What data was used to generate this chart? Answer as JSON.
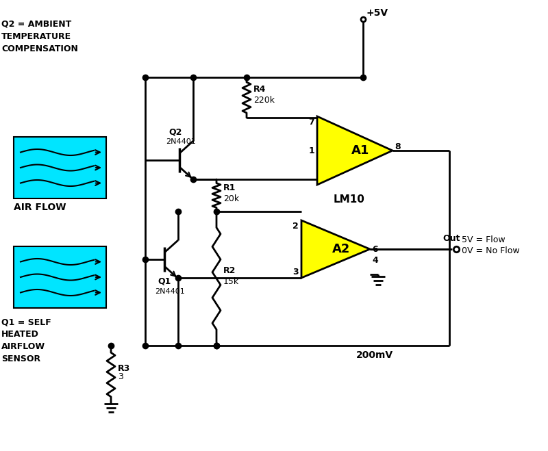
{
  "bg_color": "#ffffff",
  "line_color": "#000000",
  "cyan_color": "#00e5ff",
  "yellow_color": "#ffff00",
  "lw": 2.0,
  "labels": {
    "vcc": "+5V",
    "R4_label": "R4\n220k",
    "R1_label": "R1\n20k",
    "R2_label": "R2\n15k",
    "R3_label": "R3\n3",
    "Q2_label": "Q2\n2N4401",
    "Q1_label": "Q1\n2N4401",
    "A1": "A1",
    "A2": "A2",
    "LM10": "LM10",
    "out": "Out",
    "flow1": "5V = Flow",
    "flow2": "0V = No Flow",
    "mv": "200mV",
    "q2_desc": "Q2 = AMBIENT\nTEMPERATURE\nCOMPENSATION",
    "airflow": "AIR FLOW",
    "q1_desc": "Q1 = SELF\nHEATED\nAIRFLOW\nSENSOR"
  }
}
